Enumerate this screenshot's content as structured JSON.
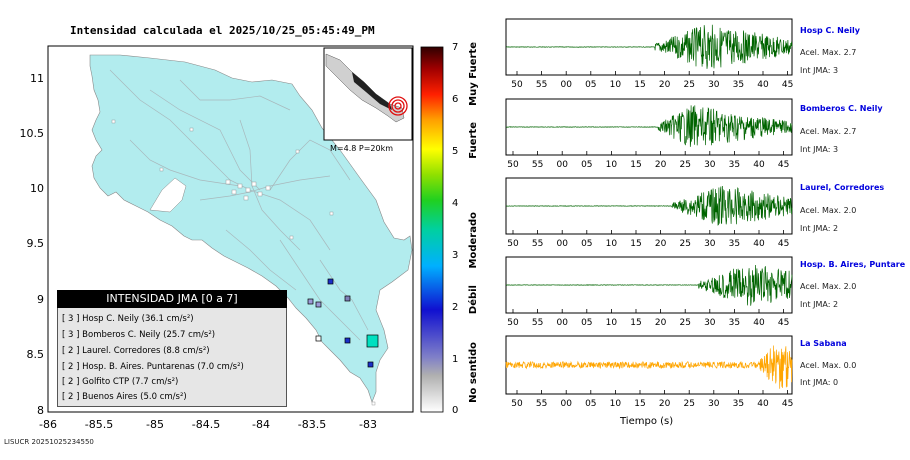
{
  "title": "Intensidad calculada el 2025/10/25_05:45:49_PM",
  "footer_id": "LISUCR 20251025234550",
  "map": {
    "lat_ticks": [
      "11",
      "10.5",
      "10",
      "9.5",
      "9",
      "8.5",
      "8"
    ],
    "lon_ticks": [
      "-86",
      "-85.5",
      "-85",
      "-84.5",
      "-84",
      "-83.5",
      "-83"
    ],
    "inset_label": "M=4.8 P=20km",
    "land_color": "#b2ecee",
    "sea_color": "#ffffff",
    "epicenter_marker_color": "#e01010"
  },
  "legend": {
    "header": "INTENSIDAD JMA [0 a 7]",
    "rows": [
      {
        "level": "[ 3 ]",
        "name": "Hosp C. Neily",
        "value": "(36.1 cm/s²)"
      },
      {
        "level": "[ 3 ]",
        "name": "Bomberos C. Neily",
        "value": "(25.7 cm/s²)"
      },
      {
        "level": "[ 2 ]",
        "name": "Laurel. Corredores",
        "value": "(8.8 cm/s²)"
      },
      {
        "level": "[ 2 ]",
        "name": "Hosp. B. Aires. Puntarenas",
        "value": "(7.0 cm/s²)"
      },
      {
        "level": "[ 2 ]",
        "name": "Golfito CTP",
        "value": "(7.7 cm/s²)"
      },
      {
        "level": "[ 2 ]",
        "name": "Buenos Aires",
        "value": "(5.0 cm/s²)"
      }
    ]
  },
  "colorbar": {
    "ticks": [
      "7",
      "6",
      "5",
      "4",
      "3",
      "2",
      "1",
      "0"
    ],
    "labels": [
      "Muy Fuerte",
      "Fuerte",
      "Moderado",
      "Débil",
      "No sentido"
    ]
  },
  "stations": [
    {
      "name": "Hosp C. Neily",
      "accel": "Acel. Max. 2.7",
      "jma": "Int JMA: 3",
      "trace_color": "#006400"
    },
    {
      "name": "Bomberos C. Neily",
      "accel": "Acel. Max. 2.7",
      "jma": "Int JMA: 3",
      "trace_color": "#006400"
    },
    {
      "name": "Laurel, Corredores",
      "accel": "Acel. Max. 2.0",
      "jma": "Int JMA: 2",
      "trace_color": "#006400"
    },
    {
      "name": "Hosp. B. Aires, Puntare",
      "accel": "Acel. Max. 2.0",
      "jma": "Int JMA: 2",
      "trace_color": "#006400"
    },
    {
      "name": "La Sabana",
      "accel": "Acel. Max. 0.0",
      "jma": "Int JMA: 0",
      "trace_color": "#ffa500"
    }
  ],
  "time_ticks": [
    "50",
    "55",
    "00",
    "05",
    "10",
    "15",
    "20",
    "25",
    "30",
    "35",
    "40",
    "45"
  ],
  "xaxis_label": "Tiempo (s)"
}
